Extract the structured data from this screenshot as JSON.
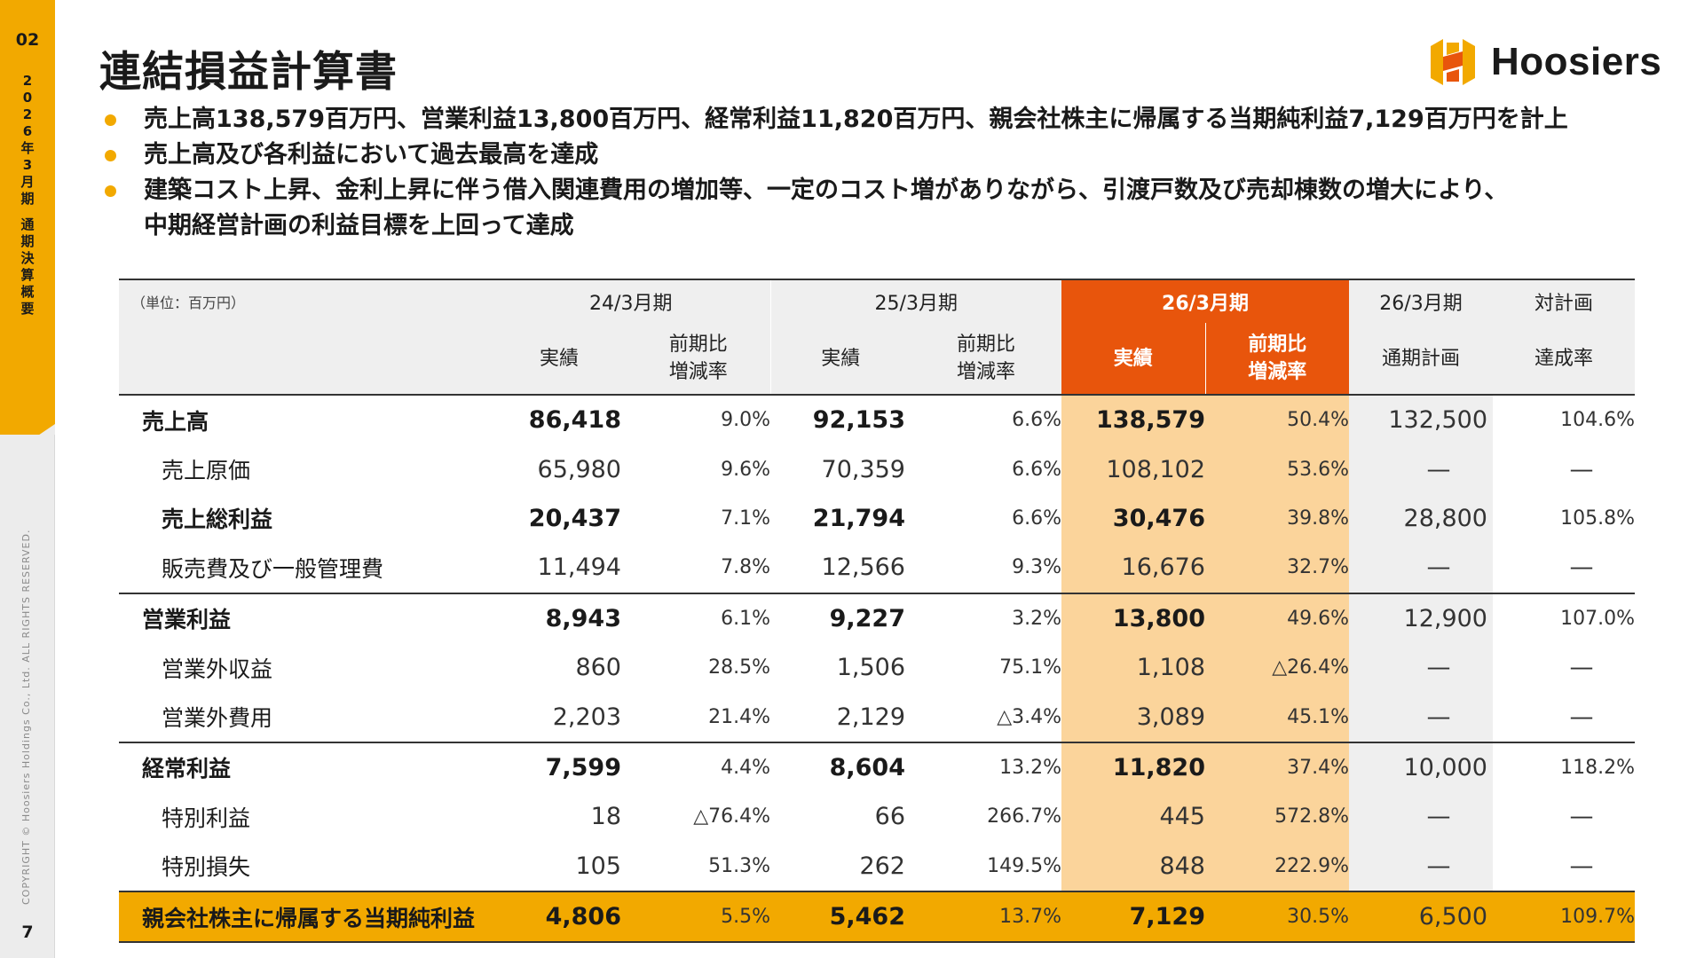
{
  "side": {
    "page_code": "02",
    "section_chars": [
      "2",
      "0",
      "2",
      "6",
      "年",
      "3",
      "月",
      "期",
      "通",
      "期",
      "決",
      "算",
      "概",
      "要"
    ],
    "copyright": "COPYRIGHT © Hoosiers Holdings Co., Ltd. ALL RIGHTS RESERVED.",
    "page_number": "7"
  },
  "header": {
    "title": "連結損益計算書",
    "logo_text": "Hoosiers",
    "brand_color": "#F2A900",
    "accent_color": "#E8550C"
  },
  "bullets": [
    "売上高138,579百万円、営業利益13,800百万円、経常利益11,820百万円、親会社株主に帰属する当期純利益7,129百万円を計上",
    "売上高及び各利益において過去最高を達成",
    "建築コスト上昇、金利上昇に伴う借入関連費用の増加等、一定のコスト増がありながら、引渡戸数及び売却棟数の増大により、",
    "中期経営計画の利益目標を上回って達成"
  ],
  "table": {
    "unit": "（単位：百万円）",
    "periods": {
      "fy24": "24/3月期",
      "fy25": "25/3月期",
      "fy26": "26/3月期",
      "fy26_plan": "26/3月期",
      "vs_plan": "対計画"
    },
    "subheads": {
      "actual": "実績",
      "yoy_line1": "前期比",
      "yoy_line2": "増減率",
      "plan": "通期計画",
      "achievement": "達成率"
    },
    "rows": [
      {
        "label": "売上高",
        "fy24": "86,418",
        "fy24_yoy": "9.0%",
        "fy25": "92,153",
        "fy25_yoy": "6.6%",
        "fy26": "138,579",
        "fy26_yoy": "50.4%",
        "plan": "132,500",
        "rate": "104.6%"
      },
      {
        "label": "売上原価",
        "fy24": "65,980",
        "fy24_yoy": "9.6%",
        "fy25": "70,359",
        "fy25_yoy": "6.6%",
        "fy26": "108,102",
        "fy26_yoy": "53.6%",
        "plan": "—",
        "rate": "—"
      },
      {
        "label": "売上総利益",
        "fy24": "20,437",
        "fy24_yoy": "7.1%",
        "fy25": "21,794",
        "fy25_yoy": "6.6%",
        "fy26": "30,476",
        "fy26_yoy": "39.8%",
        "plan": "28,800",
        "rate": "105.8%"
      },
      {
        "label": "販売費及び一般管理費",
        "fy24": "11,494",
        "fy24_yoy": "7.8%",
        "fy25": "12,566",
        "fy25_yoy": "9.3%",
        "fy26": "16,676",
        "fy26_yoy": "32.7%",
        "plan": "—",
        "rate": "—"
      },
      {
        "label": "営業利益",
        "fy24": "8,943",
        "fy24_yoy": "6.1%",
        "fy25": "9,227",
        "fy25_yoy": "3.2%",
        "fy26": "13,800",
        "fy26_yoy": "49.6%",
        "plan": "12,900",
        "rate": "107.0%"
      },
      {
        "label": "営業外収益",
        "fy24": "860",
        "fy24_yoy": "28.5%",
        "fy25": "1,506",
        "fy25_yoy": "75.1%",
        "fy26": "1,108",
        "fy26_yoy": "△26.4%",
        "plan": "—",
        "rate": "—"
      },
      {
        "label": "営業外費用",
        "fy24": "2,203",
        "fy24_yoy": "21.4%",
        "fy25": "2,129",
        "fy25_yoy": "△3.4%",
        "fy26": "3,089",
        "fy26_yoy": "45.1%",
        "plan": "—",
        "rate": "—"
      },
      {
        "label": "経常利益",
        "fy24": "7,599",
        "fy24_yoy": "4.4%",
        "fy25": "8,604",
        "fy25_yoy": "13.2%",
        "fy26": "11,820",
        "fy26_yoy": "37.4%",
        "plan": "10,000",
        "rate": "118.2%"
      },
      {
        "label": "特別利益",
        "fy24": "18",
        "fy24_yoy": "△76.4%",
        "fy25": "66",
        "fy25_yoy": "266.7%",
        "fy26": "445",
        "fy26_yoy": "572.8%",
        "plan": "—",
        "rate": "—"
      },
      {
        "label": "特別損失",
        "fy24": "105",
        "fy24_yoy": "51.3%",
        "fy25": "262",
        "fy25_yoy": "149.5%",
        "fy26": "848",
        "fy26_yoy": "222.9%",
        "plan": "—",
        "rate": "—"
      },
      {
        "label": "親会社株主に帰属する当期純利益",
        "fy24": "4,806",
        "fy24_yoy": "5.5%",
        "fy25": "5,462",
        "fy25_yoy": "13.7%",
        "fy26": "7,129",
        "fy26_yoy": "30.5%",
        "plan": "6,500",
        "rate": "109.7%"
      }
    ]
  }
}
